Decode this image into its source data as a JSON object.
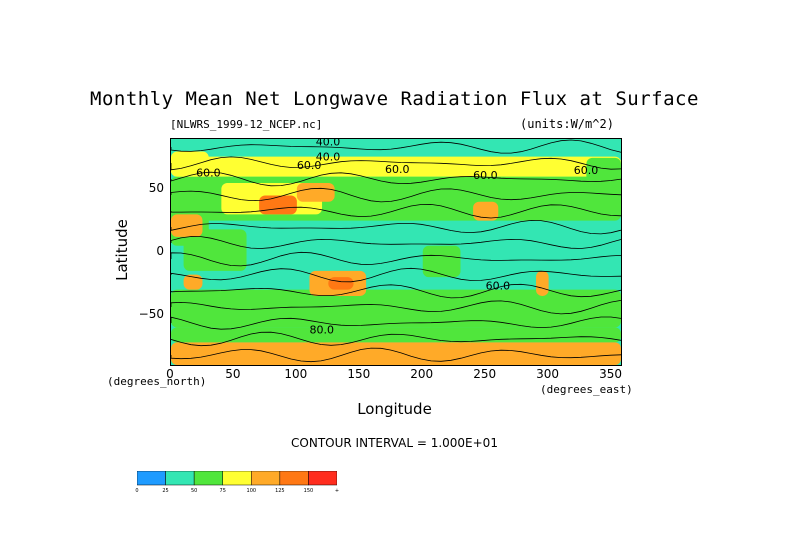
{
  "chart_data": {
    "type": "heatmap",
    "title": "Monthly Mean Net Longwave Radiation Flux at Surface",
    "subtitle_left": "[NLWRS_1999-12_NCEP.nc]",
    "subtitle_right": "(units:W/m^2)",
    "xlabel": "Longitude",
    "ylabel": "Latitude",
    "x_unit": "(degrees_east)",
    "y_unit": "(degrees_north)",
    "xlim": [
      0,
      357.5
    ],
    "ylim": [
      -90,
      90
    ],
    "x_ticks": [
      0,
      50,
      100,
      150,
      200,
      250,
      300,
      350
    ],
    "y_ticks": [
      50,
      0,
      -50
    ],
    "contour_interval_label": "CONTOUR INTERVAL = 1.000E+01",
    "contour_labels": [
      "40.0",
      "40.0",
      "60.0",
      "60.0",
      "60.0",
      "60.0",
      "60.0",
      "60.0",
      "80.0"
    ],
    "colorbar": {
      "levels": [
        "0",
        "25",
        "50",
        "75",
        "100",
        "125",
        "150",
        "+"
      ],
      "colors": [
        "#1e9bff",
        "#33e6b3",
        "#50e63c",
        "#ffff32",
        "#ffaa28",
        "#ff7814",
        "#ff2d1e"
      ]
    },
    "regions": [
      {
        "lon": [
          0,
          357.5
        ],
        "lat": [
          -90,
          90
        ],
        "value": 38
      },
      {
        "lon": [
          0,
          357.5
        ],
        "lat": [
          -30,
          30
        ],
        "value": 35
      },
      {
        "lon": [
          0,
          357.5
        ],
        "lat": [
          25,
          60
        ],
        "value": 55
      },
      {
        "lon": [
          0,
          357.5
        ],
        "lat": [
          -60,
          -30
        ],
        "value": 55
      },
      {
        "lon": [
          0,
          357.5
        ],
        "lat": [
          -72,
          -60
        ],
        "value": 60
      },
      {
        "lon": [
          0,
          357.5
        ],
        "lat": [
          -90,
          -72
        ],
        "value": 105
      },
      {
        "lon": [
          0,
          357.5
        ],
        "lat": [
          76,
          90
        ],
        "value": 42
      },
      {
        "lon": [
          10,
          60
        ],
        "lat": [
          -15,
          18
        ],
        "value": 60
      },
      {
        "lon": [
          0,
          30
        ],
        "lat": [
          5,
          35
        ],
        "value": 70
      },
      {
        "lon": [
          0,
          25
        ],
        "lat": [
          12,
          30
        ],
        "value": 115
      },
      {
        "lon": [
          40,
          120
        ],
        "lat": [
          30,
          55
        ],
        "value": 90
      },
      {
        "lon": [
          70,
          100
        ],
        "lat": [
          30,
          45
        ],
        "value": 130
      },
      {
        "lon": [
          100,
          130
        ],
        "lat": [
          40,
          55
        ],
        "value": 110
      },
      {
        "lon": [
          110,
          155
        ],
        "lat": [
          -35,
          -15
        ],
        "value": 110
      },
      {
        "lon": [
          125,
          145
        ],
        "lat": [
          -30,
          -20
        ],
        "value": 140
      },
      {
        "lon": [
          240,
          260
        ],
        "lat": [
          25,
          40
        ],
        "value": 110
      },
      {
        "lon": [
          290,
          300
        ],
        "lat": [
          -35,
          -15
        ],
        "value": 120
      },
      {
        "lon": [
          10,
          25
        ],
        "lat": [
          -30,
          -18
        ],
        "value": 100
      },
      {
        "lon": [
          0,
          357.5
        ],
        "lat": [
          60,
          76
        ],
        "value": 80
      },
      {
        "lon": [
          0,
          30
        ],
        "lat": [
          60,
          80
        ],
        "value": 90
      },
      {
        "lon": [
          330,
          357.5
        ],
        "lat": [
          40,
          75
        ],
        "value": 60
      },
      {
        "lon": [
          200,
          230
        ],
        "lat": [
          -20,
          5
        ],
        "value": 60
      }
    ]
  }
}
